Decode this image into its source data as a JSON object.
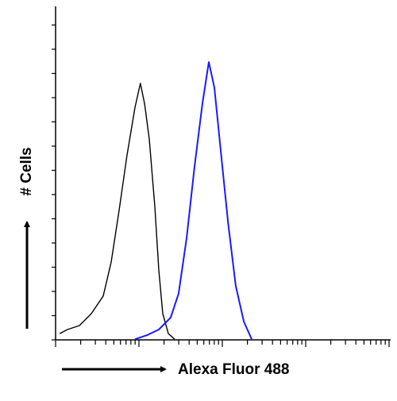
{
  "chart_data": {
    "type": "line",
    "xlabel": "Alexa Fluor 488",
    "ylabel": "# Cells",
    "xscale": "log",
    "xlim": [
      1,
      10000
    ],
    "ylim": [
      0,
      100
    ],
    "series": [
      {
        "color": "#000000",
        "x": [
          1.12,
          1.39,
          1.93,
          2.68,
          3.73,
          4.64,
          5.78,
          7.2,
          8.96,
          10.4,
          11.7,
          13.3,
          15.5,
          17.3,
          19.3,
          22.5,
          26.8
        ],
        "values": [
          1.9,
          3.1,
          4.3,
          7.9,
          13.2,
          23.4,
          39,
          55.7,
          70,
          77.3,
          71,
          60.5,
          40.2,
          21,
          7.9,
          1.9,
          0.2
        ]
      },
      {
        "color": "#1a1aff",
        "x": [
          8.96,
          12.5,
          17.3,
          24,
          29.9,
          37.3,
          46.4,
          57.8,
          68.9,
          80.3,
          95.7,
          117,
          145,
          181,
          225
        ],
        "values": [
          0.2,
          1.4,
          3.1,
          6.7,
          13.9,
          30.6,
          52.2,
          71.3,
          83.7,
          76,
          57,
          35.4,
          16.3,
          5.5,
          0.2
        ]
      }
    ]
  }
}
